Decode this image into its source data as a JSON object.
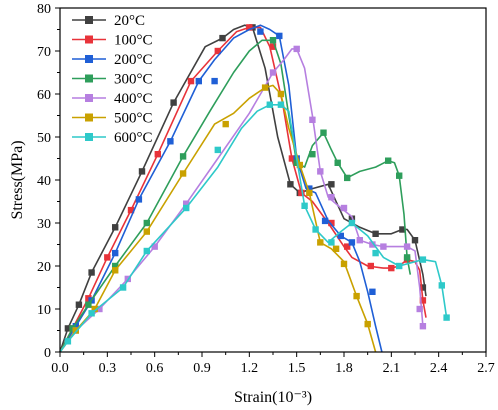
{
  "chart_data": {
    "type": "line",
    "xlabel": "Strain(10⁻³)",
    "ylabel": "Stress(MPa)",
    "xlim": [
      0,
      2.7
    ],
    "ylim": [
      0,
      80
    ],
    "xticks": [
      "0.0",
      "0.3",
      "0.6",
      "0.9",
      "1.2",
      "1.5",
      "1.8",
      "2.1",
      "2.4",
      "2.7"
    ],
    "yticks": [
      "0",
      "10",
      "20",
      "30",
      "40",
      "50",
      "60",
      "70",
      "80"
    ],
    "legend_position": "top-left",
    "grid": false,
    "series": [
      {
        "name": "20°C",
        "color": "#404040",
        "marker": "square",
        "points": [
          [
            0.0,
            0
          ],
          [
            0.05,
            5.5
          ],
          [
            0.12,
            11
          ],
          [
            0.2,
            18.5
          ],
          [
            0.35,
            29
          ],
          [
            0.52,
            42
          ],
          [
            0.72,
            58
          ],
          [
            0.92,
            71
          ],
          [
            1.03,
            73
          ],
          [
            1.1,
            75
          ],
          [
            1.17,
            76
          ],
          [
            1.22,
            75.5
          ],
          [
            1.3,
            66
          ],
          [
            1.38,
            50
          ],
          [
            1.46,
            39
          ],
          [
            1.52,
            37
          ],
          [
            1.6,
            38
          ],
          [
            1.7,
            39
          ],
          [
            1.8,
            31
          ],
          [
            1.9,
            29
          ],
          [
            2.0,
            27.5
          ],
          [
            2.1,
            27.5
          ],
          [
            2.17,
            28.5
          ],
          [
            2.2,
            28.5
          ],
          [
            2.25,
            26
          ],
          [
            2.3,
            18
          ],
          [
            2.32,
            13
          ]
        ],
        "marked": [
          [
            0.05,
            5.5
          ],
          [
            0.12,
            11
          ],
          [
            0.2,
            18.5
          ],
          [
            0.35,
            29
          ],
          [
            0.52,
            42
          ],
          [
            0.72,
            58
          ],
          [
            1.03,
            73
          ],
          [
            1.22,
            75.5
          ],
          [
            1.46,
            39
          ],
          [
            1.52,
            37
          ],
          [
            1.72,
            39
          ],
          [
            1.85,
            31
          ],
          [
            2.0,
            27.5
          ],
          [
            2.17,
            28.5
          ],
          [
            2.25,
            26
          ],
          [
            2.3,
            15
          ]
        ]
      },
      {
        "name": "100°C",
        "color": "#e8333a",
        "marker": "square",
        "points": [
          [
            0.0,
            0
          ],
          [
            0.08,
            5.5
          ],
          [
            0.18,
            12.5
          ],
          [
            0.3,
            22
          ],
          [
            0.45,
            33
          ],
          [
            0.62,
            46
          ],
          [
            0.83,
            63
          ],
          [
            1.0,
            70
          ],
          [
            1.12,
            74.5
          ],
          [
            1.2,
            75.5
          ],
          [
            1.27,
            75.5
          ],
          [
            1.33,
            71
          ],
          [
            1.41,
            58
          ],
          [
            1.47,
            45
          ],
          [
            1.53,
            37
          ],
          [
            1.6,
            35
          ],
          [
            1.7,
            30
          ],
          [
            1.8,
            24.5
          ],
          [
            1.85,
            22
          ],
          [
            1.95,
            20
          ],
          [
            2.05,
            19.5
          ],
          [
            2.1,
            19.5
          ],
          [
            2.15,
            20
          ],
          [
            2.2,
            21.5
          ],
          [
            2.25,
            21
          ],
          [
            2.28,
            19
          ],
          [
            2.3,
            12
          ],
          [
            2.32,
            8
          ]
        ],
        "marked": [
          [
            0.08,
            5.5
          ],
          [
            0.18,
            12.5
          ],
          [
            0.3,
            22
          ],
          [
            0.45,
            33
          ],
          [
            0.62,
            46
          ],
          [
            0.83,
            63
          ],
          [
            1.0,
            70
          ],
          [
            1.2,
            75.5
          ],
          [
            1.35,
            71
          ],
          [
            1.47,
            45
          ],
          [
            1.53,
            37
          ],
          [
            1.72,
            30
          ],
          [
            1.82,
            24.5
          ],
          [
            1.97,
            20
          ],
          [
            2.1,
            19.5
          ],
          [
            2.2,
            21.5
          ],
          [
            2.3,
            12
          ]
        ]
      },
      {
        "name": "200°C",
        "color": "#1f5fd6",
        "marker": "square",
        "points": [
          [
            0.0,
            0
          ],
          [
            0.1,
            6
          ],
          [
            0.2,
            12
          ],
          [
            0.35,
            23
          ],
          [
            0.5,
            35.5
          ],
          [
            0.7,
            49
          ],
          [
            0.88,
            63
          ],
          [
            0.98,
            68
          ],
          [
            1.1,
            73
          ],
          [
            1.2,
            75
          ],
          [
            1.27,
            76
          ],
          [
            1.33,
            75
          ],
          [
            1.39,
            73.5
          ],
          [
            1.45,
            62
          ],
          [
            1.5,
            45
          ],
          [
            1.56,
            38
          ],
          [
            1.62,
            37
          ],
          [
            1.7,
            30.5
          ],
          [
            1.78,
            27
          ],
          [
            1.85,
            25.5
          ],
          [
            1.9,
            21
          ],
          [
            1.95,
            14
          ],
          [
            2.0,
            6
          ],
          [
            2.04,
            0
          ]
        ],
        "marked": [
          [
            0.1,
            6
          ],
          [
            0.2,
            12
          ],
          [
            0.35,
            23
          ],
          [
            0.5,
            35.5
          ],
          [
            0.7,
            49
          ],
          [
            0.88,
            63
          ],
          [
            0.98,
            63
          ],
          [
            1.27,
            74.5
          ],
          [
            1.39,
            73.5
          ],
          [
            1.5,
            45
          ],
          [
            1.58,
            38
          ],
          [
            1.68,
            30.5
          ],
          [
            1.78,
            27
          ],
          [
            1.85,
            25.5
          ],
          [
            1.98,
            14
          ]
        ]
      },
      {
        "name": "300°C",
        "color": "#2e9e5b",
        "marker": "square",
        "points": [
          [
            0.0,
            0
          ],
          [
            0.08,
            5.5
          ],
          [
            0.18,
            11
          ],
          [
            0.35,
            20
          ],
          [
            0.55,
            30
          ],
          [
            0.78,
            45.5
          ],
          [
            0.95,
            56
          ],
          [
            1.1,
            65
          ],
          [
            1.2,
            70
          ],
          [
            1.28,
            72.5
          ],
          [
            1.35,
            72.5
          ],
          [
            1.4,
            67
          ],
          [
            1.45,
            55
          ],
          [
            1.5,
            44
          ],
          [
            1.55,
            43
          ],
          [
            1.6,
            48
          ],
          [
            1.67,
            51
          ],
          [
            1.72,
            47
          ],
          [
            1.76,
            44
          ],
          [
            1.82,
            40.5
          ],
          [
            1.9,
            42
          ],
          [
            2.0,
            43
          ],
          [
            2.08,
            44.5
          ],
          [
            2.12,
            44
          ],
          [
            2.15,
            41
          ],
          [
            2.18,
            32
          ],
          [
            2.2,
            22
          ],
          [
            2.22,
            18
          ]
        ],
        "marked": [
          [
            0.08,
            5.5
          ],
          [
            0.18,
            11
          ],
          [
            0.35,
            20
          ],
          [
            0.55,
            30
          ],
          [
            0.78,
            45.5
          ],
          [
            1.35,
            72.5
          ],
          [
            1.5,
            44
          ],
          [
            1.6,
            46
          ],
          [
            1.67,
            51
          ],
          [
            1.76,
            44
          ],
          [
            1.82,
            40.5
          ],
          [
            2.08,
            44.5
          ],
          [
            2.15,
            41
          ],
          [
            2.2,
            22
          ]
        ]
      },
      {
        "name": "400°C",
        "color": "#b67fe0",
        "marker": "square",
        "points": [
          [
            0.0,
            0
          ],
          [
            0.1,
            5
          ],
          [
            0.25,
            10
          ],
          [
            0.43,
            17
          ],
          [
            0.6,
            24.5
          ],
          [
            0.8,
            34.5
          ],
          [
            1.0,
            45
          ],
          [
            1.2,
            55.5
          ],
          [
            1.35,
            65
          ],
          [
            1.42,
            68
          ],
          [
            1.47,
            70.5
          ],
          [
            1.5,
            70.5
          ],
          [
            1.55,
            66
          ],
          [
            1.6,
            55
          ],
          [
            1.65,
            42
          ],
          [
            1.7,
            36
          ],
          [
            1.78,
            33.5
          ],
          [
            1.85,
            31.5
          ],
          [
            1.9,
            26
          ],
          [
            1.98,
            25
          ],
          [
            2.05,
            24.5
          ],
          [
            2.15,
            24.5
          ],
          [
            2.2,
            24.5
          ],
          [
            2.25,
            23.5
          ],
          [
            2.28,
            15
          ],
          [
            2.3,
            6
          ]
        ],
        "marked": [
          [
            0.1,
            5
          ],
          [
            0.25,
            10
          ],
          [
            0.43,
            17
          ],
          [
            0.6,
            24.5
          ],
          [
            0.8,
            34.5
          ],
          [
            1.35,
            65
          ],
          [
            1.5,
            70.5
          ],
          [
            1.6,
            54
          ],
          [
            1.65,
            42
          ],
          [
            1.72,
            36
          ],
          [
            1.8,
            33.5
          ],
          [
            1.9,
            26
          ],
          [
            1.98,
            25
          ],
          [
            2.05,
            24.5
          ],
          [
            2.2,
            24.5
          ],
          [
            2.28,
            10
          ],
          [
            2.3,
            6
          ]
        ]
      },
      {
        "name": "500°C",
        "color": "#c9a100",
        "marker": "square",
        "points": [
          [
            0.0,
            0
          ],
          [
            0.1,
            5
          ],
          [
            0.22,
            10
          ],
          [
            0.35,
            19
          ],
          [
            0.55,
            28
          ],
          [
            0.78,
            41.5
          ],
          [
            0.98,
            53
          ],
          [
            1.1,
            55.5
          ],
          [
            1.2,
            59
          ],
          [
            1.3,
            61.5
          ],
          [
            1.35,
            62
          ],
          [
            1.4,
            60
          ],
          [
            1.45,
            52
          ],
          [
            1.52,
            43.5
          ],
          [
            1.58,
            37
          ],
          [
            1.65,
            25.5
          ],
          [
            1.72,
            24
          ],
          [
            1.8,
            21
          ],
          [
            1.88,
            13
          ],
          [
            1.95,
            6.5
          ],
          [
            2.0,
            0
          ]
        ],
        "marked": [
          [
            0.1,
            5
          ],
          [
            0.22,
            10
          ],
          [
            0.35,
            19
          ],
          [
            0.55,
            28
          ],
          [
            0.78,
            41.5
          ],
          [
            1.05,
            53
          ],
          [
            1.3,
            61.5
          ],
          [
            1.4,
            60
          ],
          [
            1.52,
            43.5
          ],
          [
            1.58,
            37
          ],
          [
            1.65,
            25.5
          ],
          [
            1.75,
            24
          ],
          [
            1.8,
            20.5
          ],
          [
            1.88,
            13
          ],
          [
            1.95,
            6.5
          ]
        ]
      },
      {
        "name": "600°C",
        "color": "#2ec9c9",
        "marker": "square",
        "points": [
          [
            0.0,
            0
          ],
          [
            0.05,
            2.5
          ],
          [
            0.2,
            9
          ],
          [
            0.4,
            15
          ],
          [
            0.55,
            23.5
          ],
          [
            0.8,
            33.5
          ],
          [
            1.0,
            43
          ],
          [
            1.15,
            52
          ],
          [
            1.25,
            56
          ],
          [
            1.33,
            57.5
          ],
          [
            1.4,
            57.5
          ],
          [
            1.45,
            56
          ],
          [
            1.5,
            45
          ],
          [
            1.55,
            34
          ],
          [
            1.62,
            28.5
          ],
          [
            1.7,
            25.5
          ],
          [
            1.78,
            28
          ],
          [
            1.85,
            30
          ],
          [
            1.95,
            27
          ],
          [
            2.05,
            22
          ],
          [
            2.15,
            20
          ],
          [
            2.25,
            21
          ],
          [
            2.3,
            21.5
          ],
          [
            2.38,
            21
          ],
          [
            2.42,
            15.5
          ],
          [
            2.45,
            8
          ]
        ],
        "marked": [
          [
            0.05,
            2.5
          ],
          [
            0.2,
            9
          ],
          [
            0.4,
            15
          ],
          [
            0.55,
            23.5
          ],
          [
            0.8,
            33.5
          ],
          [
            1.0,
            47
          ],
          [
            1.33,
            57.5
          ],
          [
            1.4,
            57.5
          ],
          [
            1.55,
            34
          ],
          [
            1.62,
            28.5
          ],
          [
            1.72,
            25.5
          ],
          [
            1.85,
            30
          ],
          [
            2.0,
            23
          ],
          [
            2.15,
            20
          ],
          [
            2.3,
            21.5
          ],
          [
            2.42,
            15.5
          ],
          [
            2.45,
            8
          ]
        ]
      }
    ]
  }
}
